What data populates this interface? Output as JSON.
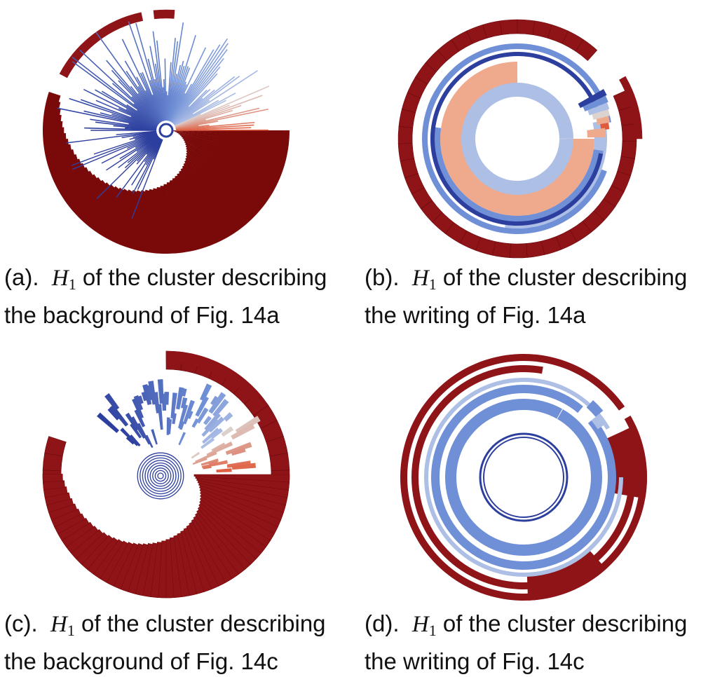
{
  "colors": {
    "dark_red": "#7a0a0a",
    "red": "#8e1418",
    "salmon": "#efa98c",
    "orange_red": "#e05a3c",
    "light_blue": "#aebfe6",
    "mid_blue": "#6f8fd6",
    "dark_blue": "#2d3f9e",
    "pale": "#dcd3d0"
  },
  "panels": [
    {
      "id": "a",
      "label": "(a).",
      "math": "H",
      "sub": "1",
      "text1": "of the cluster describing",
      "line2": "the background of Fig. 14a",
      "icon": "spiral-barcode-background"
    },
    {
      "id": "b",
      "label": "(b).",
      "math": "H",
      "sub": "1",
      "text1": "of the cluster describing",
      "line2": "the writing of Fig. 14a",
      "icon": "ring-barcode-writing"
    },
    {
      "id": "c",
      "label": "(c).",
      "math": "H",
      "sub": "1",
      "text1": "of the cluster describing",
      "line2": "the background of Fig. 14c",
      "icon": "spiral-barcode-background"
    },
    {
      "id": "d",
      "label": "(d).",
      "math": "H",
      "sub": "1",
      "text1": "of the cluster describing",
      "line2": "the writing of Fig. 14c",
      "icon": "ring-barcode-writing"
    }
  ]
}
